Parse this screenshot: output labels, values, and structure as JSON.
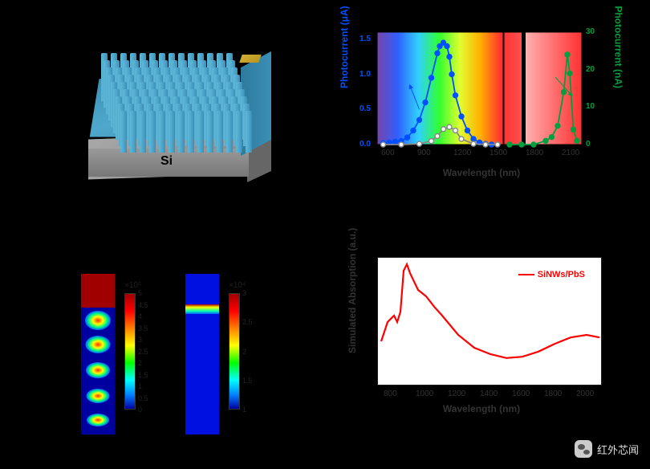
{
  "watermark_text": "红外芯闻",
  "panelA": {
    "si_label": "Si",
    "pillar_color": "#4fa8cc",
    "base_color": "#888888",
    "contact_color": "#d4af37"
  },
  "panelB": {
    "x_label": "Wavelength (nm)",
    "y_left_label": "Photocurrent (μA)",
    "y_right_label": "Photocurrent (nA)",
    "x_ticks": [
      600,
      900,
      1200,
      1500,
      1800,
      2100
    ],
    "y_left_ticks": [
      0,
      0.5,
      1.0,
      1.5
    ],
    "y_right_ticks": [
      0,
      10,
      20,
      30
    ],
    "xlim": [
      500,
      2200
    ],
    "spectrum_left": {
      "colors": [
        "#7744aa",
        "#3060ff",
        "#30d0ff",
        "#30ff30",
        "#e0ff30",
        "#ffb000",
        "#ff3030",
        "#ff5050"
      ],
      "range": [
        500,
        1550
      ]
    },
    "spectrum_right": {
      "colors": [
        "#ffb0b0",
        "#ff3030"
      ],
      "range": [
        1550,
        2200
      ]
    },
    "series_blue": {
      "color": "#0050ff",
      "marker": "circle",
      "x": [
        550,
        600,
        650,
        700,
        750,
        800,
        850,
        900,
        950,
        1000,
        1020,
        1050,
        1080,
        1100,
        1120,
        1150,
        1200,
        1250,
        1300,
        1350,
        1400,
        1450,
        1500
      ],
      "y": [
        0.02,
        0.03,
        0.04,
        0.05,
        0.1,
        0.2,
        0.35,
        0.6,
        0.95,
        1.3,
        1.4,
        1.45,
        1.4,
        1.25,
        1.0,
        0.7,
        0.4,
        0.2,
        0.08,
        0.03,
        0.01,
        0.0,
        0.0
      ]
    },
    "series_gray": {
      "color": "#888888",
      "marker": "circle",
      "x": [
        550,
        700,
        850,
        950,
        1000,
        1050,
        1100,
        1150,
        1200,
        1300,
        1400,
        1500
      ],
      "y": [
        0.0,
        0.0,
        0.01,
        0.05,
        0.12,
        0.22,
        0.25,
        0.2,
        0.08,
        0.01,
        0.0,
        0.0
      ]
    },
    "series_green": {
      "color": "#00a040",
      "marker": "circle",
      "x": [
        1600,
        1700,
        1800,
        1900,
        1950,
        2000,
        2050,
        2080,
        2100,
        2130,
        2160
      ],
      "y_nA": [
        0,
        0,
        0,
        1,
        2,
        5,
        14,
        24,
        19,
        4,
        1
      ]
    }
  },
  "panelC": {
    "left_sim": {
      "exp_label": "×10⁶",
      "ticks": [
        0,
        0.5,
        1,
        1.5,
        2,
        2.5,
        3,
        3.5,
        4,
        4.5,
        5
      ],
      "colormap": "jet",
      "description": "field distribution 532nm"
    },
    "right_sim": {
      "exp_label": "×10⁴",
      "ticks": [
        1,
        1.5,
        2,
        2.5,
        3
      ],
      "colormap": "jet",
      "description": "field distribution 1550nm"
    }
  },
  "panelD": {
    "x_label": "Wavelength (nm)",
    "y_label": "Simulated Absorption (a.u.)",
    "legend": "SiNWs/PbS",
    "x_ticks": [
      800,
      1000,
      1200,
      1400,
      1600,
      1800,
      2000
    ],
    "xlim": [
      700,
      2100
    ],
    "ylim": [
      0,
      1.0
    ],
    "line_color": "#ff0000",
    "curve": {
      "x": [
        720,
        760,
        800,
        820,
        840,
        860,
        880,
        900,
        950,
        1000,
        1050,
        1100,
        1200,
        1300,
        1400,
        1500,
        1600,
        1700,
        1800,
        1900,
        2000,
        2080
      ],
      "y": [
        0.35,
        0.5,
        0.55,
        0.5,
        0.58,
        0.9,
        0.95,
        0.88,
        0.75,
        0.7,
        0.62,
        0.55,
        0.4,
        0.3,
        0.25,
        0.22,
        0.23,
        0.27,
        0.33,
        0.38,
        0.4,
        0.38
      ]
    }
  }
}
